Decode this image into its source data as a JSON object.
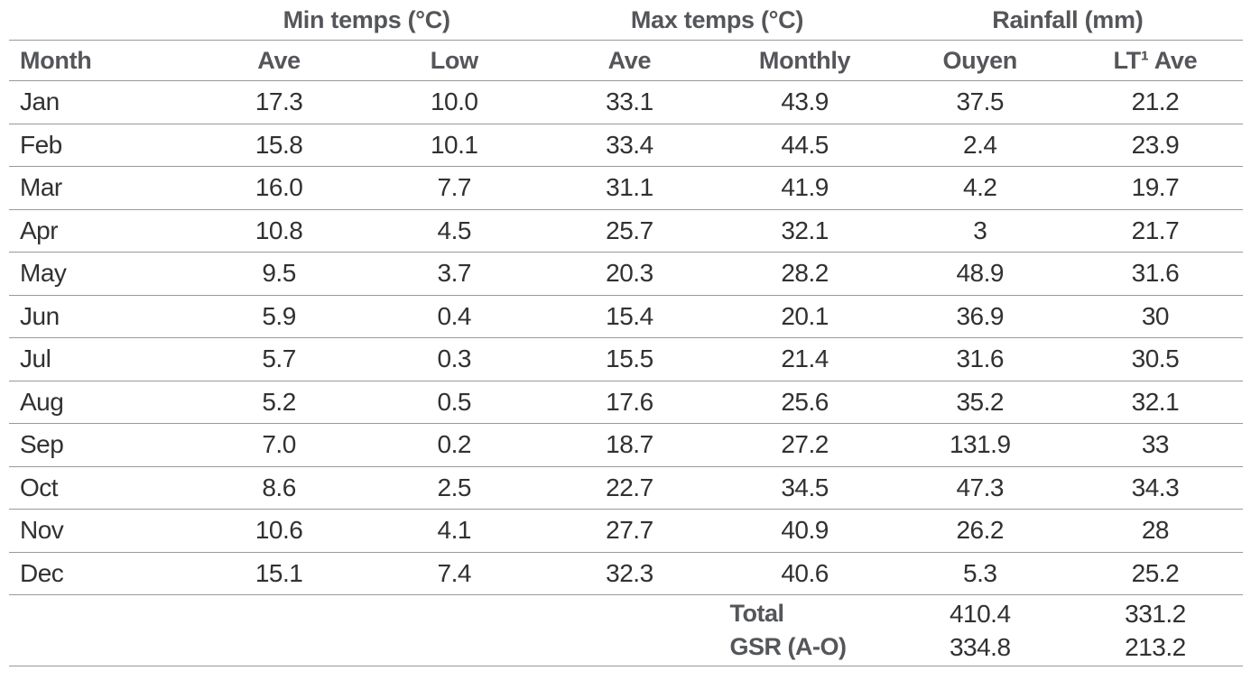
{
  "table": {
    "group_headers": {
      "min_temps": "Min temps (°C)",
      "max_temps": "Max temps (°C)",
      "rainfall": "Rainfall (mm)"
    },
    "columns": {
      "month": "Month",
      "min_ave": "Ave",
      "min_low": "Low",
      "max_ave": "Ave",
      "max_monthly": "Monthly",
      "rain_ouyen": "Ouyen",
      "rain_lt_ave": "LT¹ Ave"
    },
    "rows": [
      {
        "month": "Jan",
        "min_ave": "17.3",
        "min_low": "10.0",
        "max_ave": "33.1",
        "max_monthly": "43.9",
        "rain_ouyen": "37.5",
        "rain_lt_ave": "21.2"
      },
      {
        "month": "Feb",
        "min_ave": "15.8",
        "min_low": "10.1",
        "max_ave": "33.4",
        "max_monthly": "44.5",
        "rain_ouyen": "2.4",
        "rain_lt_ave": "23.9"
      },
      {
        "month": "Mar",
        "min_ave": "16.0",
        "min_low": "7.7",
        "max_ave": "31.1",
        "max_monthly": "41.9",
        "rain_ouyen": "4.2",
        "rain_lt_ave": "19.7"
      },
      {
        "month": "Apr",
        "min_ave": "10.8",
        "min_low": "4.5",
        "max_ave": "25.7",
        "max_monthly": "32.1",
        "rain_ouyen": "3",
        "rain_lt_ave": "21.7"
      },
      {
        "month": "May",
        "min_ave": "9.5",
        "min_low": "3.7",
        "max_ave": "20.3",
        "max_monthly": "28.2",
        "rain_ouyen": "48.9",
        "rain_lt_ave": "31.6"
      },
      {
        "month": "Jun",
        "min_ave": "5.9",
        "min_low": "0.4",
        "max_ave": "15.4",
        "max_monthly": "20.1",
        "rain_ouyen": "36.9",
        "rain_lt_ave": "30"
      },
      {
        "month": "Jul",
        "min_ave": "5.7",
        "min_low": "0.3",
        "max_ave": "15.5",
        "max_monthly": "21.4",
        "rain_ouyen": "31.6",
        "rain_lt_ave": "30.5"
      },
      {
        "month": "Aug",
        "min_ave": "5.2",
        "min_low": "0.5",
        "max_ave": "17.6",
        "max_monthly": "25.6",
        "rain_ouyen": "35.2",
        "rain_lt_ave": "32.1"
      },
      {
        "month": "Sep",
        "min_ave": "7.0",
        "min_low": "0.2",
        "max_ave": "18.7",
        "max_monthly": "27.2",
        "rain_ouyen": "131.9",
        "rain_lt_ave": "33"
      },
      {
        "month": "Oct",
        "min_ave": "8.6",
        "min_low": "2.5",
        "max_ave": "22.7",
        "max_monthly": "34.5",
        "rain_ouyen": "47.3",
        "rain_lt_ave": "34.3"
      },
      {
        "month": "Nov",
        "min_ave": "10.6",
        "min_low": "4.1",
        "max_ave": "27.7",
        "max_monthly": "40.9",
        "rain_ouyen": "26.2",
        "rain_lt_ave": "28"
      },
      {
        "month": "Dec",
        "min_ave": "15.1",
        "min_low": "7.4",
        "max_ave": "32.3",
        "max_monthly": "40.6",
        "rain_ouyen": "5.3",
        "rain_lt_ave": "25.2"
      }
    ],
    "footer": {
      "total_label": "Total",
      "gsr_label": "GSR (A-O)",
      "total_ouyen": "410.4",
      "gsr_ouyen": "334.8",
      "total_lt_ave": "331.2",
      "gsr_lt_ave": "213.2"
    },
    "colors": {
      "header_text": "#55565a",
      "data_text": "#313134",
      "rule": "#98999c",
      "background": "#ffffff"
    }
  }
}
